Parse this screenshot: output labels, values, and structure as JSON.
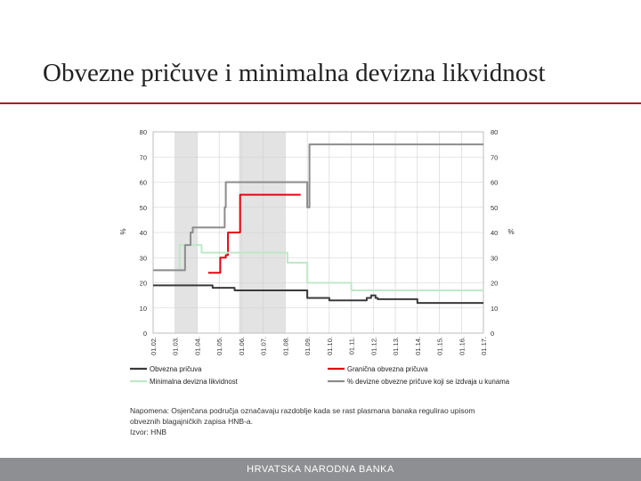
{
  "slide": {
    "title": "Obvezne pričuve i minimalna devizna likvidnost",
    "note_line1": "Napomena: Osjenčana područja označavaju razdoblje kada se rast plasmana banaka regulirao upisom",
    "note_line2": "obveznih blagajničkih zapisa HNB-a.",
    "source": "Izvor: HNB",
    "footer": "HRVATSKA NARODNA BANKA"
  },
  "chart_data": {
    "type": "line",
    "ylabel": "%",
    "y2label": "%",
    "ylim": [
      0,
      80
    ],
    "y2lim": [
      0,
      80
    ],
    "yticks": [
      "0",
      "10",
      "20",
      "30",
      "40",
      "50",
      "60",
      "70",
      "80"
    ],
    "y2ticks": [
      "0",
      "10",
      "20",
      "30",
      "40",
      "50",
      "60",
      "70",
      "80"
    ],
    "xlim": [
      2002,
      2017
    ],
    "x_tick_labels": [
      "01.02.",
      "01.03.",
      "01.04.",
      "01.05.",
      "01.06.",
      "01.07.",
      "01.08.",
      "01.09.",
      "01.10.",
      "01.11.",
      "01.12.",
      "01.13.",
      "01.14.",
      "01.15.",
      "01.16.",
      "01.17."
    ],
    "shaded_periods": [
      [
        2003.0,
        2004.0
      ],
      [
        2005.9,
        2008.0
      ]
    ],
    "grid": true,
    "legend_position": "bottom",
    "series": [
      {
        "name": "Obvezna pričuva",
        "color": "#3a3a3a",
        "axis": "left",
        "points": [
          [
            2002.0,
            19
          ],
          [
            2004.6,
            19
          ],
          [
            2004.7,
            18
          ],
          [
            2005.6,
            18
          ],
          [
            2005.7,
            17
          ],
          [
            2008.9,
            17
          ],
          [
            2009.0,
            14
          ],
          [
            2009.9,
            14
          ],
          [
            2010.0,
            13
          ],
          [
            2011.6,
            13
          ],
          [
            2011.7,
            14
          ],
          [
            2011.9,
            15
          ],
          [
            2012.1,
            14
          ],
          [
            2012.2,
            13.5
          ],
          [
            2013.9,
            13.5
          ],
          [
            2014.0,
            12
          ],
          [
            2017.0,
            12
          ]
        ]
      },
      {
        "name": "Granična obvezna pričuva",
        "color": "#e30613",
        "axis": "right",
        "points": [
          [
            2004.5,
            24
          ],
          [
            2004.95,
            24
          ],
          [
            2005.05,
            30
          ],
          [
            2005.3,
            31
          ],
          [
            2005.4,
            40
          ],
          [
            2005.8,
            40
          ],
          [
            2005.95,
            55
          ],
          [
            2008.7,
            55
          ]
        ]
      },
      {
        "name": "Minimalna devizna likvidnost",
        "color": "#bfe8c7",
        "axis": "left",
        "points": [
          [
            2002.0,
            25
          ],
          [
            2003.1,
            25
          ],
          [
            2003.2,
            35
          ],
          [
            2004.1,
            35
          ],
          [
            2004.2,
            32
          ],
          [
            2008.0,
            32
          ],
          [
            2008.1,
            28
          ],
          [
            2008.8,
            28
          ],
          [
            2009.0,
            20
          ],
          [
            2010.8,
            20
          ],
          [
            2011.0,
            17
          ],
          [
            2017.0,
            17
          ]
        ]
      },
      {
        "name": "% devizne obvezne pričuve koji se izdvaja u kunama",
        "color": "#8c8c8c",
        "axis": "right",
        "points": [
          [
            2002.0,
            25
          ],
          [
            2003.3,
            25
          ],
          [
            2003.45,
            35
          ],
          [
            2003.7,
            40
          ],
          [
            2003.8,
            42
          ],
          [
            2005.2,
            42
          ],
          [
            2005.25,
            50
          ],
          [
            2005.3,
            60
          ],
          [
            2008.95,
            60
          ],
          [
            2009.0,
            50
          ],
          [
            2009.1,
            75
          ],
          [
            2017.0,
            75
          ]
        ]
      }
    ]
  }
}
